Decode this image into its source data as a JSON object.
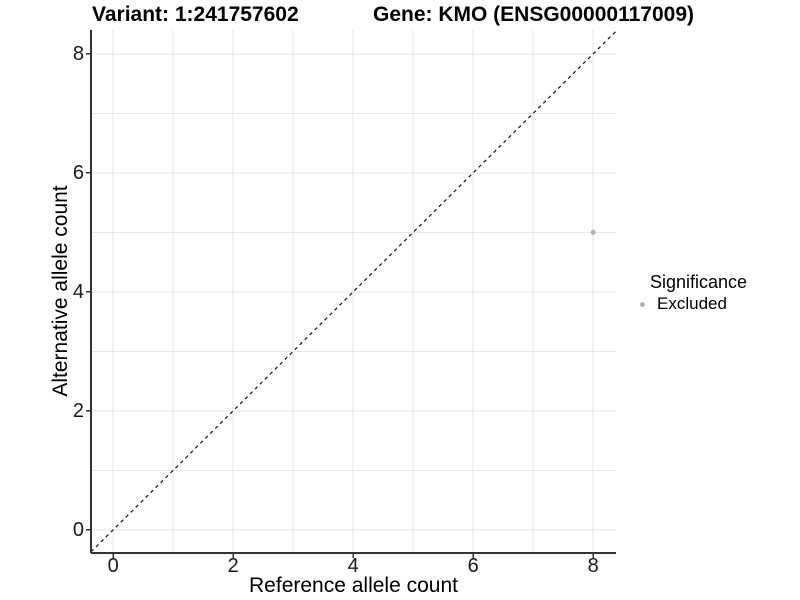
{
  "chart_data": {
    "type": "scatter",
    "titles": {
      "left": "Variant: 1:241757602",
      "right": "Gene: KMO (ENSG00000117009)"
    },
    "xlabel": "Reference allele count",
    "ylabel": "Alternative allele count",
    "xlim": [
      -0.37,
      8.38
    ],
    "ylim": [
      -0.39,
      8.4
    ],
    "x_ticks": [
      0,
      2,
      4,
      6,
      8
    ],
    "y_ticks": [
      0,
      2,
      4,
      6,
      8
    ],
    "grid": {
      "shown": true,
      "step": 1,
      "color": "#e6e6e6"
    },
    "identity_line": {
      "shown": true,
      "equation": "y = x",
      "style": "dashed",
      "color": "#111111"
    },
    "series": [
      {
        "name": "Excluded",
        "color": "#b4b4b4",
        "points": [
          {
            "x": 8,
            "y": 5
          }
        ]
      }
    ],
    "legend": {
      "title": "Significance",
      "position": "right",
      "items": [
        {
          "label": "Excluded",
          "color": "#b4b4b4",
          "marker": "dot"
        }
      ]
    }
  },
  "colors": {
    "background": "#ffffff",
    "axis_line": "#333333",
    "tick_text": "#1a1a1a",
    "title_text": "#000000"
  }
}
